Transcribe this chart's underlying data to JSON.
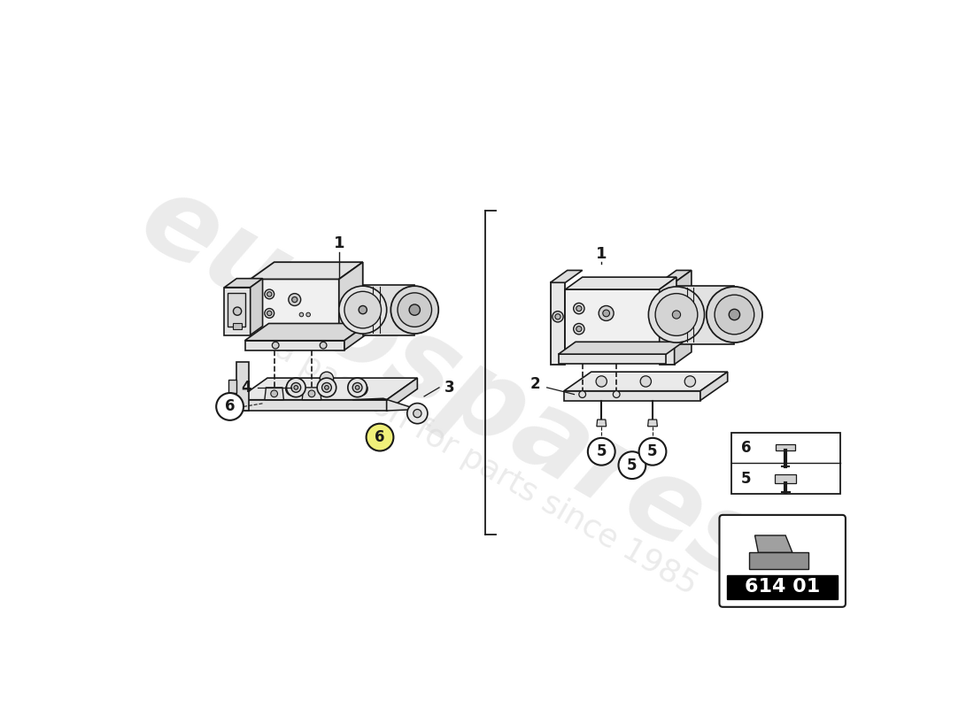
{
  "bg_color": "#ffffff",
  "line_color": "#1a1a1a",
  "face_color": "#f2f2f2",
  "face_dark": "#e0e0e0",
  "face_mid": "#ebebeb",
  "motor_color": "#e8e8e8",
  "bracket_color": "#ededed",
  "watermark_text1": "eurospares",
  "watermark_text2": "a passion for parts since 1985",
  "watermark_color": "#d8d8d8",
  "yellow_highlight": "#f0f07a",
  "part_number": "614 01"
}
